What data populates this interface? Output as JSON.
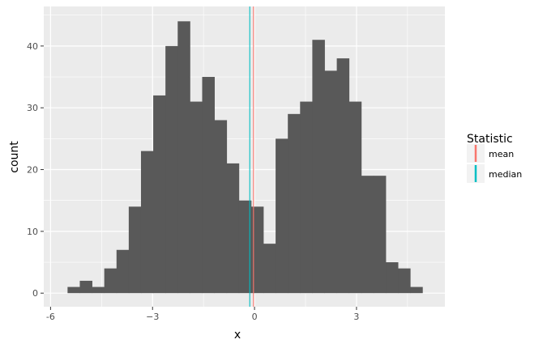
{
  "chart_data": {
    "type": "bar",
    "subtype": "histogram",
    "xlabel": "x",
    "ylabel": "count",
    "xlim": [
      -6.2,
      5.6
    ],
    "ylim": [
      -2.2,
      46.4
    ],
    "x_ticks": [
      -6,
      -3,
      0,
      3
    ],
    "x_tick_labels": [
      "-6",
      "−3",
      "0",
      "3"
    ],
    "y_ticks": [
      0,
      10,
      20,
      30,
      40
    ],
    "y_tick_labels": [
      "0",
      "10",
      "20",
      "30",
      "40"
    ],
    "grid": true,
    "bin_width": 0.36,
    "bins_left": [
      -5.5,
      -5.14,
      -4.78,
      -4.42,
      -4.06,
      -3.7,
      -3.34,
      -2.98,
      -2.62,
      -2.26,
      -1.9,
      -1.54,
      -1.18,
      -0.82,
      -0.46,
      -0.1,
      0.26,
      0.62,
      0.98,
      1.34,
      1.7,
      2.06,
      2.42,
      2.78,
      3.14,
      3.5,
      3.86,
      4.22,
      4.58
    ],
    "counts": [
      1,
      2,
      1,
      4,
      7,
      14,
      23,
      32,
      40,
      44,
      31,
      35,
      28,
      21,
      15,
      14,
      8,
      25,
      29,
      31,
      41,
      36,
      38,
      31,
      19,
      19,
      5,
      4,
      1
    ],
    "bar_color": "#595959",
    "lines": [
      {
        "name": "mean",
        "x": -0.03,
        "color": "#F8766D"
      },
      {
        "name": "median",
        "x": -0.14,
        "color": "#00BFC4"
      }
    ],
    "legend": {
      "title": "Statistic",
      "position": "right",
      "entries": [
        "mean",
        "median"
      ]
    }
  }
}
